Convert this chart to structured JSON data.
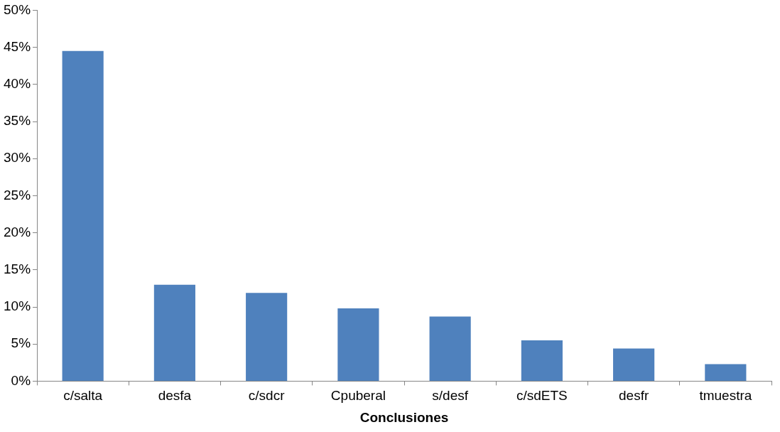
{
  "chart_data": {
    "type": "bar",
    "xlabel": "Conclusiones",
    "categories": [
      "c/salta",
      "desfa",
      "c/sdcr",
      "Cpuberal",
      "s/desf",
      "c/sdETS",
      "desfr",
      "tmuestra"
    ],
    "values": [
      44.5,
      13.0,
      11.9,
      9.8,
      8.7,
      5.5,
      4.4,
      2.3
    ],
    "color": "#4f81bd",
    "ylim": [
      0,
      50
    ],
    "yticks": [
      {
        "value": 0,
        "label": "0%"
      },
      {
        "value": 5,
        "label": "5%"
      },
      {
        "value": 10,
        "label": "10%"
      },
      {
        "value": 15,
        "label": "15%"
      },
      {
        "value": 20,
        "label": "20%"
      },
      {
        "value": 25,
        "label": "25%"
      },
      {
        "value": 30,
        "label": "30%"
      },
      {
        "value": 35,
        "label": "35%"
      },
      {
        "value": 40,
        "label": "40%"
      },
      {
        "value": 45,
        "label": "45%"
      },
      {
        "value": 50,
        "label": "50%"
      }
    ],
    "grid": false,
    "legend": false
  }
}
